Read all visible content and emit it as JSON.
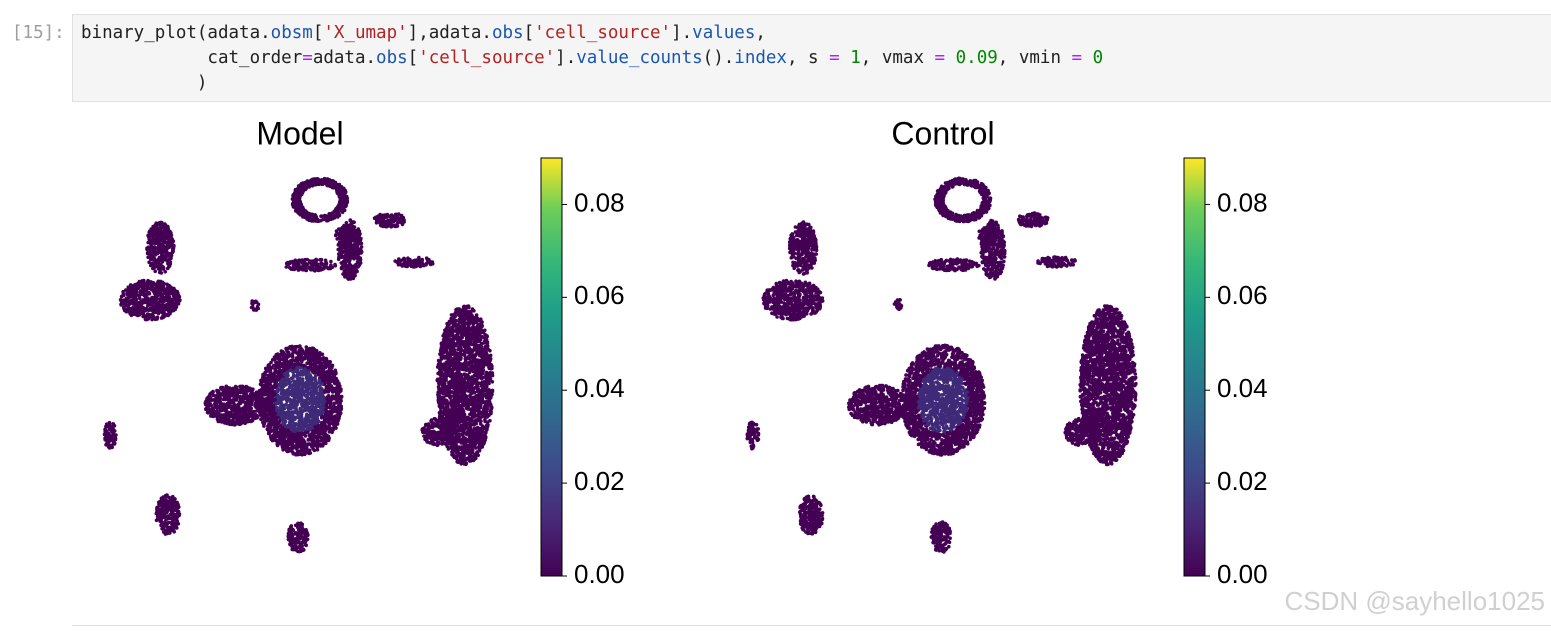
{
  "cell": {
    "prompt": "[15]:",
    "code": [
      [
        {
          "t": "binary_plot(adata.",
          "c": "#212121"
        },
        {
          "t": "obsm",
          "c": "#1a56b0"
        },
        {
          "t": "[",
          "c": "#212121"
        },
        {
          "t": "'X_umap'",
          "c": "#b22222"
        },
        {
          "t": "],adata.",
          "c": "#212121"
        },
        {
          "t": "obs",
          "c": "#1a56b0"
        },
        {
          "t": "[",
          "c": "#212121"
        },
        {
          "t": "'cell_source'",
          "c": "#b22222"
        },
        {
          "t": "].",
          "c": "#212121"
        },
        {
          "t": "values",
          "c": "#1a56b0"
        },
        {
          "t": ",",
          "c": "#212121"
        }
      ],
      [
        {
          "t": "            cat_order",
          "c": "#212121"
        },
        {
          "t": "=",
          "c": "#aa22ff"
        },
        {
          "t": "adata.",
          "c": "#212121"
        },
        {
          "t": "obs",
          "c": "#1a56b0"
        },
        {
          "t": "[",
          "c": "#212121"
        },
        {
          "t": "'cell_source'",
          "c": "#b22222"
        },
        {
          "t": "].",
          "c": "#212121"
        },
        {
          "t": "value_counts",
          "c": "#1a56b0"
        },
        {
          "t": "().",
          "c": "#212121"
        },
        {
          "t": "index",
          "c": "#1a56b0"
        },
        {
          "t": ", s ",
          "c": "#212121"
        },
        {
          "t": "=",
          "c": "#aa22ff"
        },
        {
          "t": " ",
          "c": "#212121"
        },
        {
          "t": "1",
          "c": "#008800"
        },
        {
          "t": ", vmax ",
          "c": "#212121"
        },
        {
          "t": "=",
          "c": "#aa22ff"
        },
        {
          "t": " ",
          "c": "#212121"
        },
        {
          "t": "0.09",
          "c": "#008800"
        },
        {
          "t": ", vmin ",
          "c": "#212121"
        },
        {
          "t": "=",
          "c": "#aa22ff"
        },
        {
          "t": " ",
          "c": "#212121"
        },
        {
          "t": "0",
          "c": "#008800"
        }
      ],
      [
        {
          "t": "           )",
          "c": "#212121"
        }
      ]
    ]
  },
  "plots": [
    {
      "title": "Model",
      "colorbar": {
        "lim": [
          0,
          0.09
        ],
        "ticks": [
          {
            "value": 0,
            "label": "0.00"
          },
          {
            "value": 0.02,
            "label": "0.02"
          },
          {
            "value": 0.04,
            "label": "0.04"
          },
          {
            "value": 0.06,
            "label": "0.06"
          },
          {
            "value": 0.08,
            "label": "0.08"
          }
        ]
      }
    },
    {
      "title": "Control",
      "colorbar": {
        "lim": [
          0,
          0.09
        ],
        "ticks": [
          {
            "value": 0,
            "label": "0.00"
          },
          {
            "value": 0.02,
            "label": "0.02"
          },
          {
            "value": 0.04,
            "label": "0.04"
          },
          {
            "value": 0.06,
            "label": "0.06"
          },
          {
            "value": 0.08,
            "label": "0.08"
          }
        ]
      }
    }
  ],
  "watermark": "CSDN @sayhello1025"
}
